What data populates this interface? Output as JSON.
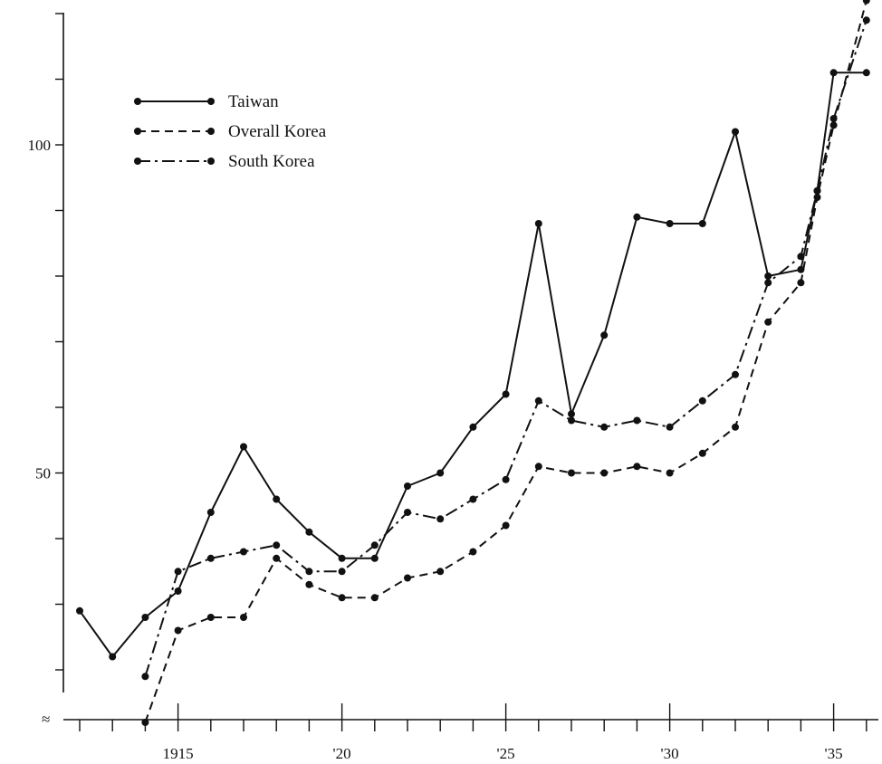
{
  "chart_data": {
    "type": "line",
    "title": "",
    "xlabel": "",
    "ylabel": "",
    "xlim": [
      1911.7,
      1936.5
    ],
    "ylim": [
      6,
      120
    ],
    "x_ticks": [
      {
        "value": 1915,
        "label": "1915"
      },
      {
        "value": 1920,
        "label": "'20"
      },
      {
        "value": 1925,
        "label": "'25"
      },
      {
        "value": 1930,
        "label": "'30"
      },
      {
        "value": 1935,
        "label": "'35"
      }
    ],
    "y_ticks": [
      {
        "value": 50,
        "label": "50"
      },
      {
        "value": 100,
        "label": "100"
      }
    ],
    "y_break_symbol": "≈",
    "grid": false,
    "legend": "top-left",
    "series": [
      {
        "name": "Taiwan",
        "dash": "solid",
        "x": [
          1912,
          1913,
          1914,
          1915,
          1916,
          1917,
          1918,
          1919,
          1920,
          1921,
          1922,
          1923,
          1924,
          1925,
          1926,
          1927,
          1928,
          1929,
          1930,
          1931,
          1932,
          1933,
          1934,
          1934.5,
          1935,
          1936
        ],
        "y": [
          29,
          22,
          28,
          32,
          44,
          54,
          46,
          41,
          37,
          37,
          48,
          50,
          57,
          62,
          88,
          59,
          71,
          89,
          88,
          88,
          102,
          80,
          81,
          93,
          111,
          111
        ]
      },
      {
        "name": "Overall Korea",
        "dash": "dashed",
        "x": [
          1914,
          1915,
          1916,
          1917,
          1918,
          1919,
          1920,
          1921,
          1922,
          1923,
          1924,
          1925,
          1926,
          1927,
          1928,
          1929,
          1930,
          1931,
          1932,
          1933,
          1934,
          1934.5,
          1935,
          1936
        ],
        "y": [
          12,
          26,
          28,
          28,
          37,
          33,
          31,
          31,
          34,
          35,
          38,
          42,
          51,
          50,
          50,
          51,
          50,
          53,
          57,
          73,
          79,
          92,
          103,
          122
        ]
      },
      {
        "name": "South Korea",
        "dash": "dash-dot",
        "x": [
          1914,
          1915,
          1916,
          1917,
          1918,
          1919,
          1920,
          1921,
          1922,
          1923,
          1924,
          1925,
          1926,
          1927,
          1928,
          1929,
          1930,
          1931,
          1932,
          1933,
          1934,
          1934.5,
          1935,
          1936
        ],
        "y": [
          19,
          35,
          37,
          38,
          39,
          35,
          35,
          39,
          44,
          43,
          46,
          49,
          61,
          58,
          57,
          58,
          57,
          61,
          65,
          79,
          83,
          93,
          104,
          119
        ]
      }
    ]
  }
}
